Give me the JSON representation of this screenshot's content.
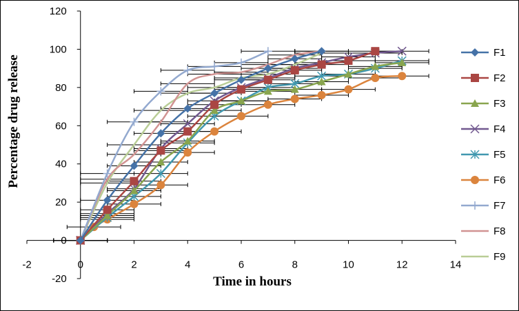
{
  "chart_data": {
    "type": "line",
    "title": "",
    "xlabel": "Time in hours",
    "ylabel": "Percentage drug release",
    "xlim": [
      -2,
      14
    ],
    "ylim": [
      -20,
      120
    ],
    "x_ticks": [
      -2,
      0,
      2,
      4,
      6,
      8,
      10,
      12,
      14
    ],
    "y_ticks": [
      -20,
      0,
      20,
      40,
      60,
      80,
      100,
      120
    ],
    "grid": false,
    "legend_position": "right",
    "error_bars": "horizontal",
    "series": [
      {
        "name": "F1",
        "color": "#4572A7",
        "marker": "diamond",
        "x": [
          0,
          1,
          2,
          3,
          4,
          5,
          6,
          7,
          8,
          9
        ],
        "y": [
          0,
          21,
          39,
          56,
          69,
          77,
          84,
          90,
          95,
          99
        ]
      },
      {
        "name": "F2",
        "color": "#AA4643",
        "marker": "square",
        "x": [
          0,
          1,
          2,
          3,
          4,
          5,
          6,
          7,
          8,
          9,
          10,
          11
        ],
        "y": [
          0,
          16,
          31,
          47,
          57,
          71,
          79,
          84,
          89,
          92,
          94,
          99
        ]
      },
      {
        "name": "F3",
        "color": "#89A54E",
        "marker": "triangle",
        "x": [
          0,
          1,
          2,
          3,
          4,
          5,
          6,
          7,
          8,
          9,
          10,
          11,
          12
        ],
        "y": [
          0,
          13,
          26,
          41,
          52,
          68,
          73,
          78,
          79,
          83,
          87,
          91,
          93
        ]
      },
      {
        "name": "F4",
        "color": "#71588F",
        "marker": "x",
        "x": [
          0,
          1,
          2,
          3,
          4,
          5,
          6,
          7,
          8,
          9,
          10,
          11,
          12
        ],
        "y": [
          0,
          14,
          27,
          48,
          61,
          73,
          80,
          85,
          90,
          93,
          96,
          98,
          99
        ]
      },
      {
        "name": "F5",
        "color": "#4198AF",
        "marker": "star",
        "x": [
          0,
          1,
          2,
          3,
          4,
          5,
          6,
          7,
          8,
          9,
          10,
          11,
          12
        ],
        "y": [
          0,
          12,
          23,
          35,
          51,
          65,
          73,
          80,
          82,
          86,
          87,
          90,
          94
        ]
      },
      {
        "name": "F6",
        "color": "#DB843D",
        "marker": "circle",
        "x": [
          0,
          0.5,
          1,
          2,
          3,
          4,
          5,
          6,
          7,
          8,
          9,
          10,
          11,
          12
        ],
        "y": [
          0,
          7,
          11,
          19,
          29,
          46,
          57,
          65,
          71,
          74,
          76,
          79,
          85,
          86
        ]
      },
      {
        "name": "F7",
        "color": "#93A9CF",
        "marker": "plus",
        "x": [
          0,
          1,
          2,
          3,
          4,
          5,
          6,
          7
        ],
        "y": [
          0,
          35,
          62,
          78,
          89,
          91,
          93,
          99
        ]
      },
      {
        "name": "F8",
        "color": "#D19392",
        "marker": "none",
        "x": [
          0,
          1,
          2,
          3,
          4,
          5,
          6,
          7,
          8,
          9
        ],
        "y": [
          0,
          32,
          45,
          62,
          82,
          87,
          88,
          92,
          97,
          99
        ]
      },
      {
        "name": "F9",
        "color": "#B9CD96",
        "marker": "none",
        "x": [
          0,
          1,
          2,
          3,
          4,
          5,
          6,
          7,
          8,
          9
        ],
        "y": [
          0,
          30,
          50,
          68,
          77,
          80,
          85,
          87,
          92,
          98
        ]
      }
    ]
  }
}
